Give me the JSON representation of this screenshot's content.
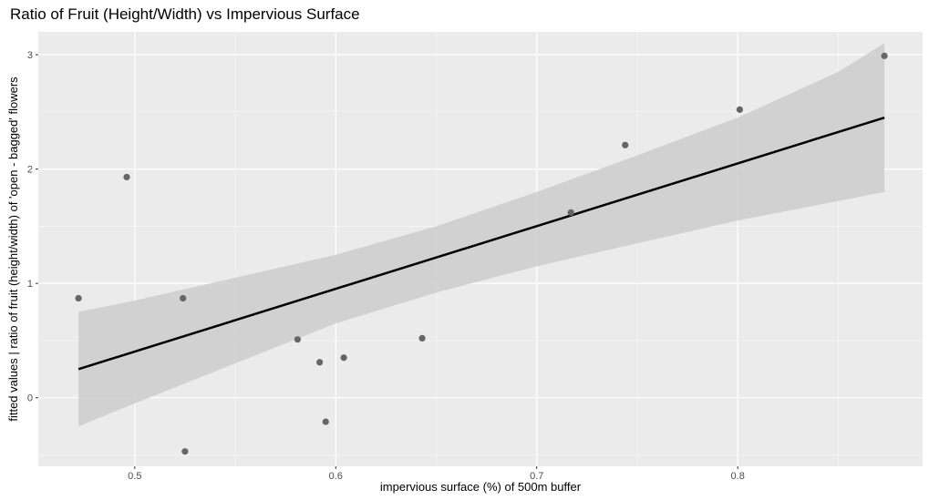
{
  "chart_data": {
    "type": "scatter",
    "title": "Ratio of Fruit (Height/Width) vs Impervious Surface",
    "xlabel": "impervious surface (%) of 500m buffer",
    "ylabel": "fitted values | ratio of fruit (height/width) of 'open - bagged' flowers",
    "xlim": [
      0.452,
      0.892
    ],
    "ylim": [
      -0.6,
      3.2
    ],
    "x_ticks": [
      0.5,
      0.6,
      0.7,
      0.8
    ],
    "x_tick_labels": [
      "0.5",
      "0.6",
      "0.7",
      "0.8"
    ],
    "y_ticks": [
      0,
      1,
      2,
      3
    ],
    "y_tick_labels": [
      "0",
      "1",
      "2",
      "3"
    ],
    "grid": true,
    "points": [
      {
        "x": 0.472,
        "y": 0.87
      },
      {
        "x": 0.496,
        "y": 1.93
      },
      {
        "x": 0.524,
        "y": 0.87
      },
      {
        "x": 0.525,
        "y": -0.47
      },
      {
        "x": 0.581,
        "y": 0.51
      },
      {
        "x": 0.592,
        "y": 0.31
      },
      {
        "x": 0.595,
        "y": -0.21
      },
      {
        "x": 0.604,
        "y": 0.35
      },
      {
        "x": 0.643,
        "y": 0.52
      },
      {
        "x": 0.717,
        "y": 1.62
      },
      {
        "x": 0.744,
        "y": 2.21
      },
      {
        "x": 0.801,
        "y": 2.52
      },
      {
        "x": 0.873,
        "y": 2.99
      }
    ],
    "fit_line": {
      "x": [
        0.472,
        0.873
      ],
      "y": [
        0.25,
        2.45
      ]
    },
    "confidence_band": {
      "x": [
        0.472,
        0.5,
        0.55,
        0.6,
        0.65,
        0.7,
        0.75,
        0.8,
        0.85,
        0.873
      ],
      "upper": [
        0.75,
        0.85,
        1.05,
        1.25,
        1.5,
        1.8,
        2.12,
        2.45,
        2.85,
        3.1
      ],
      "lower": [
        -0.25,
        -0.05,
        0.3,
        0.65,
        0.92,
        1.15,
        1.35,
        1.55,
        1.72,
        1.8
      ]
    },
    "colors": {
      "panel": "#ebebeb",
      "grid_major": "#ffffff",
      "points": "#666666",
      "line": "#000000",
      "band": "#cccccc"
    }
  }
}
